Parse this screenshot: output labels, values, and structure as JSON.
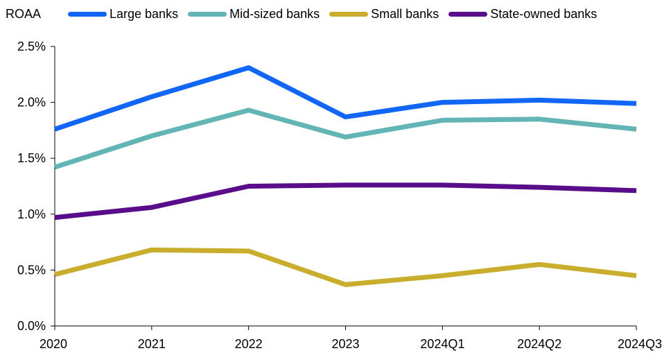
{
  "chart_data": {
    "type": "line",
    "ylabel": "ROAA",
    "categories": [
      "2020",
      "2021",
      "2022",
      "2023",
      "2024Q1",
      "2024Q2",
      "2024Q3"
    ],
    "ylim": [
      0,
      2.5
    ],
    "yticks": [
      0.0,
      0.5,
      1.0,
      1.5,
      2.0,
      2.5
    ],
    "ytick_labels": [
      "0.0%",
      "0.5%",
      "1.0%",
      "1.5%",
      "2.0%",
      "2.5%"
    ],
    "grid": false,
    "legend_position": "top",
    "series": [
      {
        "name": "Large banks",
        "color": "#1166f6",
        "values": [
          1.76,
          2.05,
          2.31,
          1.87,
          2.0,
          2.02,
          1.99
        ]
      },
      {
        "name": "Mid-sized banks",
        "color": "#63b4b4",
        "values": [
          1.42,
          1.7,
          1.93,
          1.69,
          1.84,
          1.85,
          1.76
        ]
      },
      {
        "name": "Small banks",
        "color": "#c9ad2c",
        "values": [
          0.46,
          0.68,
          0.67,
          0.37,
          0.45,
          0.55,
          0.45
        ]
      },
      {
        "name": "State-owned banks",
        "color": "#5a0d8a",
        "values": [
          0.97,
          1.06,
          1.25,
          1.26,
          1.26,
          1.24,
          1.21
        ]
      }
    ]
  }
}
